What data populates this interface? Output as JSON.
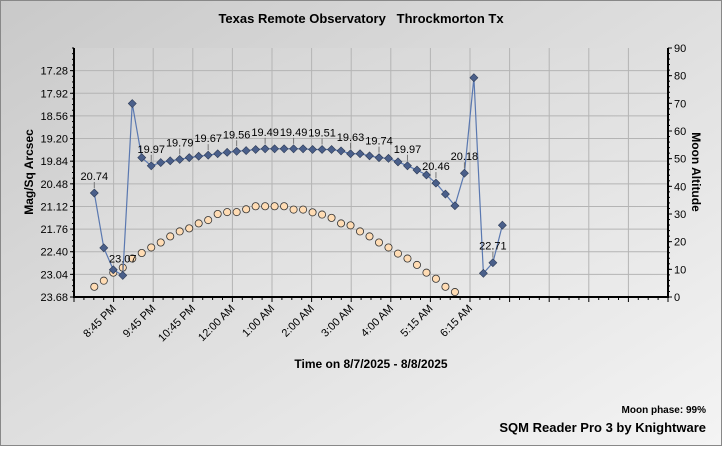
{
  "chart_data": {
    "type": "line",
    "title": "Texas Remote Observatory   Throckmorton Tx",
    "xlabel": "Time on 8/7/2025 - 8/8/2025",
    "ylabel": "Mag/Sq Arcsec",
    "y2label": "Moon Altitude",
    "ylim": [
      16.64,
      23.68
    ],
    "y_inverted": true,
    "y_ticks": [
      "17.28",
      "17.92",
      "18.56",
      "19.20",
      "19.84",
      "20.48",
      "21.12",
      "21.76",
      "22.40",
      "23.04",
      "23.68"
    ],
    "y2lim": [
      0,
      90
    ],
    "y2_ticks": [
      "0",
      "10",
      "20",
      "30",
      "40",
      "50",
      "60",
      "70",
      "80",
      "90"
    ],
    "x_ticks": [
      "8:45 PM",
      "9:45 PM",
      "10:45 PM",
      "12:00 AM",
      "1:00 AM",
      "2:00 AM",
      "3:00 AM",
      "4:00 AM",
      "5:15 AM",
      "6:15 AM"
    ],
    "grid": true,
    "series": [
      {
        "axis": "left",
        "marker": "diamond",
        "color": "#4a5f8a",
        "line_color": "#5a78b0",
        "values": [
          20.74,
          22.29,
          22.91,
          23.07,
          18.21,
          19.74,
          19.97,
          19.88,
          19.83,
          19.79,
          19.74,
          19.7,
          19.67,
          19.63,
          19.59,
          19.56,
          19.54,
          19.51,
          19.49,
          19.49,
          19.49,
          19.49,
          19.49,
          19.51,
          19.51,
          19.51,
          19.55,
          19.63,
          19.63,
          19.69,
          19.74,
          19.76,
          19.86,
          19.97,
          20.09,
          20.23,
          20.46,
          20.77,
          21.1,
          20.18,
          17.48,
          23.01,
          22.71,
          21.65
        ],
        "labeled_points": [
          {
            "index": 0,
            "label": "20.74"
          },
          {
            "index": 3,
            "label": "23.07"
          },
          {
            "index": 6,
            "label": "19.97"
          },
          {
            "index": 9,
            "label": "19.79"
          },
          {
            "index": 12,
            "label": "19.67"
          },
          {
            "index": 15,
            "label": "19.56"
          },
          {
            "index": 18,
            "label": "19.49"
          },
          {
            "index": 21,
            "label": "19.49"
          },
          {
            "index": 24,
            "label": "19.51"
          },
          {
            "index": 27,
            "label": "19.63"
          },
          {
            "index": 30,
            "label": "19.74"
          },
          {
            "index": 33,
            "label": "19.97"
          },
          {
            "index": 36,
            "label": "20.46"
          },
          {
            "index": 39,
            "label": "20.18"
          },
          {
            "index": 42,
            "label": "22.71"
          }
        ]
      },
      {
        "axis": "right",
        "marker": "circle",
        "color": "#ffdcb4",
        "values": [
          3.7,
          5.9,
          8.8,
          10.6,
          13.9,
          15.9,
          17.9,
          19.7,
          21.9,
          23.7,
          24.8,
          26.6,
          27.8,
          30.0,
          30.7,
          30.7,
          31.7,
          32.8,
          32.8,
          32.8,
          32.8,
          31.6,
          31.6,
          30.6,
          29.8,
          28.6,
          26.6,
          25.9,
          23.7,
          21.9,
          19.7,
          17.9,
          15.7,
          13.9,
          11.6,
          8.8,
          6.6,
          3.7,
          1.8
        ]
      }
    ]
  },
  "footer": {
    "moon_phase": "Moon phase: 99%",
    "credit": "SQM Reader Pro 3 by Knightware"
  }
}
